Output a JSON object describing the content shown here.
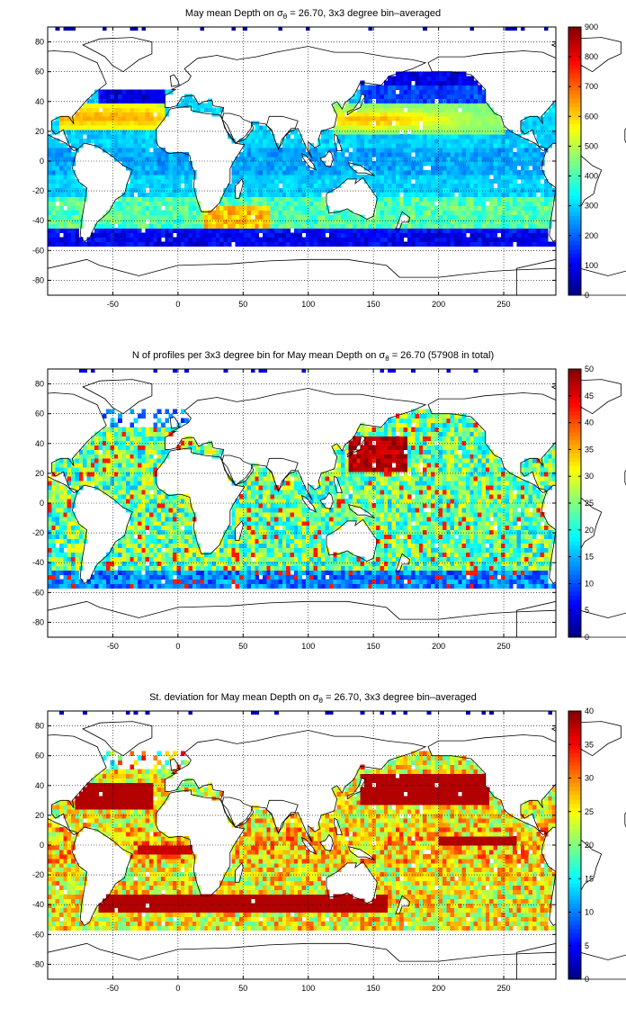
{
  "chart_data": [
    {
      "type": "heatmap",
      "title_prefix": "May mean Depth on σ",
      "title_subscript": "θ",
      "title_suffix": " = 26.70, 3x3 degree bin–averaged",
      "xticks": [
        "-50",
        "0",
        "50",
        "100",
        "150",
        "200",
        "250"
      ],
      "xtick_values": [
        -50,
        0,
        50,
        100,
        150,
        200,
        250
      ],
      "yticks": [
        "80",
        "60",
        "40",
        "20",
        "0",
        "-20",
        "-40",
        "-60",
        "-80"
      ],
      "ytick_values": [
        80,
        60,
        40,
        20,
        0,
        -20,
        -40,
        -60,
        -80
      ],
      "xlim": [
        -100,
        290
      ],
      "ylim": [
        -90,
        90
      ],
      "grid": true,
      "colorbar": {
        "min": 0,
        "max": 900,
        "ticks": [
          "900",
          "800",
          "700",
          "600",
          "500",
          "400",
          "300",
          "200",
          "100",
          "0"
        ],
        "tick_values": [
          900,
          800,
          700,
          600,
          500,
          400,
          300,
          200,
          100,
          0
        ]
      }
    },
    {
      "type": "heatmap",
      "title_prefix": "N of profiles per 3x3 degree bin for May mean Depth on σ",
      "title_subscript": "θ",
      "title_suffix": " = 26.70 (57908 in total)",
      "xticks": [
        "-50",
        "0",
        "50",
        "100",
        "150",
        "200",
        "250"
      ],
      "xtick_values": [
        -50,
        0,
        50,
        100,
        150,
        200,
        250
      ],
      "yticks": [
        "80",
        "60",
        "40",
        "20",
        "0",
        "-20",
        "-40",
        "-60",
        "-80"
      ],
      "ytick_values": [
        80,
        60,
        40,
        20,
        0,
        -20,
        -40,
        -60,
        -80
      ],
      "xlim": [
        -100,
        290
      ],
      "ylim": [
        -90,
        90
      ],
      "grid": true,
      "colorbar": {
        "min": 0,
        "max": 50,
        "ticks": [
          "50",
          "45",
          "40",
          "35",
          "30",
          "25",
          "20",
          "15",
          "10",
          "5",
          "0"
        ],
        "tick_values": [
          50,
          45,
          40,
          35,
          30,
          25,
          20,
          15,
          10,
          5,
          0
        ]
      }
    },
    {
      "type": "heatmap",
      "title_prefix": "St. deviation for May mean Depth on σ",
      "title_subscript": "θ",
      "title_suffix": " = 26.70, 3x3 degree bin–averaged",
      "xticks": [
        "-50",
        "0",
        "50",
        "100",
        "150",
        "200",
        "250"
      ],
      "xtick_values": [
        -50,
        0,
        50,
        100,
        150,
        200,
        250
      ],
      "yticks": [
        "80",
        "60",
        "40",
        "20",
        "0",
        "-20",
        "-40",
        "-60",
        "-80"
      ],
      "ytick_values": [
        80,
        60,
        40,
        20,
        0,
        -20,
        -40,
        -60,
        -80
      ],
      "xlim": [
        -100,
        290
      ],
      "ylim": [
        -90,
        90
      ],
      "grid": true,
      "colorbar": {
        "min": 0,
        "max": 40,
        "ticks": [
          "40",
          "35",
          "30",
          "25",
          "20",
          "15",
          "10",
          "5",
          "0"
        ],
        "tick_values": [
          40,
          35,
          30,
          25,
          20,
          15,
          10,
          5,
          0
        ]
      }
    }
  ]
}
